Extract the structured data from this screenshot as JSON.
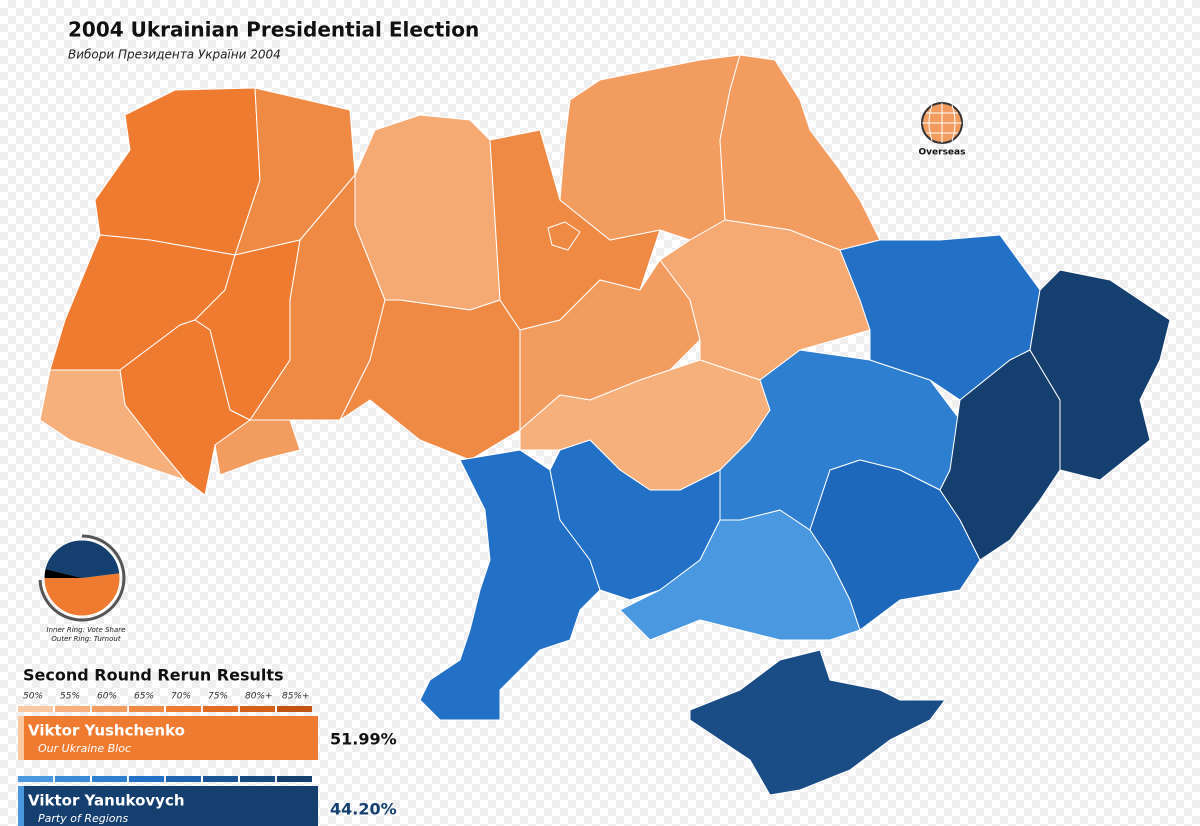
{
  "header": {
    "title": "2004 Ukrainian Presidential Election",
    "subtitle": "Вибори Президента України 2004"
  },
  "overseas": {
    "label": "Overseas"
  },
  "ring_note": {
    "inner": "Inner Ring: Vote Share",
    "outer": "Outer Ring: Turnout"
  },
  "results": {
    "title": "Second Round Rerun Results",
    "scale": [
      "50%",
      "55%",
      "60%",
      "65%",
      "70%",
      "75%",
      "80%+",
      "85%+"
    ],
    "candidates": [
      {
        "name": "Viktor Yushchenko",
        "party": "Our Ukraine Bloc",
        "share": "51.99%",
        "color": "#ee7b30",
        "scale_colors": [
          "#f8c9a3",
          "#f5b07c",
          "#f29c60",
          "#ef8a45",
          "#ee7b30",
          "#e26d22",
          "#d4601a",
          "#c25412"
        ]
      },
      {
        "name": "Viktor Yanukovych",
        "party": "Party of Regions",
        "share": "44.20%",
        "color": "#143f6e",
        "scale_colors": [
          "#4a98e0",
          "#3a8ad8",
          "#2f7fd0",
          "#2371c7",
          "#1e62b0",
          "#1a5494",
          "#174a80",
          "#143f6e"
        ]
      }
    ]
  }
}
